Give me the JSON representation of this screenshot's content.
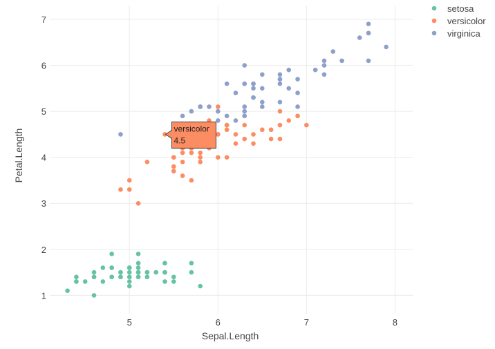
{
  "chart_data": {
    "type": "scatter",
    "title": "",
    "xlabel": "Sepal.Length",
    "ylabel": "Petal.Length",
    "xlim": [
      4.1,
      8.2
    ],
    "ylim": [
      0.6,
      7.3
    ],
    "xticks": [
      5,
      6,
      7,
      8
    ],
    "yticks": [
      1,
      2,
      3,
      4,
      5,
      6,
      7
    ],
    "grid": true,
    "legend": "top-right",
    "series": [
      {
        "name": "setosa",
        "color": "#66c2a5",
        "points": [
          [
            5.1,
            1.4
          ],
          [
            4.9,
            1.4
          ],
          [
            4.7,
            1.3
          ],
          [
            4.6,
            1.5
          ],
          [
            5.0,
            1.4
          ],
          [
            5.4,
            1.7
          ],
          [
            4.6,
            1.4
          ],
          [
            5.0,
            1.5
          ],
          [
            4.4,
            1.4
          ],
          [
            4.9,
            1.5
          ],
          [
            5.4,
            1.5
          ],
          [
            4.8,
            1.6
          ],
          [
            4.8,
            1.4
          ],
          [
            4.3,
            1.1
          ],
          [
            5.8,
            1.2
          ],
          [
            5.7,
            1.5
          ],
          [
            5.4,
            1.3
          ],
          [
            5.1,
            1.4
          ],
          [
            5.7,
            1.7
          ],
          [
            5.1,
            1.5
          ],
          [
            5.4,
            1.7
          ],
          [
            5.1,
            1.5
          ],
          [
            4.6,
            1.0
          ],
          [
            5.1,
            1.7
          ],
          [
            4.8,
            1.9
          ],
          [
            5.0,
            1.6
          ],
          [
            5.0,
            1.6
          ],
          [
            5.2,
            1.5
          ],
          [
            5.2,
            1.4
          ],
          [
            4.7,
            1.6
          ],
          [
            4.8,
            1.6
          ],
          [
            5.4,
            1.5
          ],
          [
            5.2,
            1.5
          ],
          [
            5.5,
            1.4
          ],
          [
            4.9,
            1.5
          ],
          [
            5.0,
            1.2
          ],
          [
            5.5,
            1.3
          ],
          [
            4.9,
            1.4
          ],
          [
            4.4,
            1.3
          ],
          [
            5.1,
            1.5
          ],
          [
            5.0,
            1.3
          ],
          [
            4.5,
            1.3
          ],
          [
            4.4,
            1.3
          ],
          [
            5.0,
            1.6
          ],
          [
            5.1,
            1.9
          ],
          [
            4.8,
            1.4
          ],
          [
            5.1,
            1.6
          ],
          [
            4.6,
            1.4
          ],
          [
            5.3,
            1.5
          ],
          [
            5.0,
            1.4
          ]
        ]
      },
      {
        "name": "versicolor",
        "color": "#fc8d62",
        "points": [
          [
            7.0,
            4.7
          ],
          [
            6.4,
            4.5
          ],
          [
            6.9,
            4.9
          ],
          [
            5.5,
            4.0
          ],
          [
            6.5,
            4.6
          ],
          [
            5.7,
            4.5
          ],
          [
            6.3,
            4.7
          ],
          [
            4.9,
            3.3
          ],
          [
            6.6,
            4.6
          ],
          [
            5.2,
            3.9
          ],
          [
            5.0,
            3.5
          ],
          [
            5.9,
            4.2
          ],
          [
            6.0,
            4.0
          ],
          [
            6.1,
            4.7
          ],
          [
            5.6,
            3.6
          ],
          [
            6.7,
            4.4
          ],
          [
            5.6,
            4.5
          ],
          [
            5.8,
            4.1
          ],
          [
            6.2,
            4.5
          ],
          [
            5.6,
            3.9
          ],
          [
            5.9,
            4.8
          ],
          [
            6.1,
            4.0
          ],
          [
            6.3,
            4.9
          ],
          [
            6.1,
            4.7
          ],
          [
            6.4,
            4.3
          ],
          [
            6.6,
            4.4
          ],
          [
            6.8,
            4.8
          ],
          [
            6.7,
            5.0
          ],
          [
            6.0,
            4.5
          ],
          [
            5.7,
            3.5
          ],
          [
            5.5,
            3.8
          ],
          [
            5.5,
            3.7
          ],
          [
            5.8,
            3.9
          ],
          [
            6.0,
            5.1
          ],
          [
            5.4,
            4.5
          ],
          [
            6.0,
            4.5
          ],
          [
            6.7,
            4.7
          ],
          [
            6.3,
            4.4
          ],
          [
            5.6,
            4.1
          ],
          [
            5.5,
            4.0
          ],
          [
            5.5,
            4.4
          ],
          [
            6.1,
            4.6
          ],
          [
            5.8,
            4.0
          ],
          [
            5.0,
            3.3
          ],
          [
            5.6,
            4.2
          ],
          [
            5.7,
            4.2
          ],
          [
            5.7,
            4.2
          ],
          [
            6.2,
            4.3
          ],
          [
            5.1,
            3.0
          ],
          [
            5.7,
            4.1
          ]
        ]
      },
      {
        "name": "virginica",
        "color": "#8da0cb",
        "points": [
          [
            6.3,
            6.0
          ],
          [
            5.8,
            5.1
          ],
          [
            7.1,
            5.9
          ],
          [
            6.3,
            5.6
          ],
          [
            6.5,
            5.8
          ],
          [
            7.6,
            6.6
          ],
          [
            4.9,
            4.5
          ],
          [
            7.3,
            6.3
          ],
          [
            6.7,
            5.8
          ],
          [
            7.2,
            6.1
          ],
          [
            6.5,
            5.1
          ],
          [
            6.4,
            5.3
          ],
          [
            6.8,
            5.5
          ],
          [
            5.7,
            5.0
          ],
          [
            5.8,
            5.1
          ],
          [
            6.4,
            5.3
          ],
          [
            6.5,
            5.5
          ],
          [
            7.7,
            6.7
          ],
          [
            7.7,
            6.9
          ],
          [
            6.0,
            5.0
          ],
          [
            6.9,
            5.7
          ],
          [
            5.6,
            4.9
          ],
          [
            7.7,
            6.7
          ],
          [
            6.3,
            4.9
          ],
          [
            6.7,
            5.7
          ],
          [
            7.2,
            6.0
          ],
          [
            6.2,
            4.8
          ],
          [
            6.1,
            4.9
          ],
          [
            6.4,
            5.6
          ],
          [
            7.2,
            5.8
          ],
          [
            7.4,
            6.1
          ],
          [
            7.9,
            6.4
          ],
          [
            6.4,
            5.6
          ],
          [
            6.3,
            5.1
          ],
          [
            6.1,
            5.6
          ],
          [
            7.7,
            6.1
          ],
          [
            6.3,
            5.6
          ],
          [
            6.4,
            5.5
          ],
          [
            6.0,
            4.8
          ],
          [
            6.9,
            5.4
          ],
          [
            6.7,
            5.6
          ],
          [
            6.9,
            5.1
          ],
          [
            5.8,
            5.1
          ],
          [
            6.8,
            5.9
          ],
          [
            6.7,
            5.7
          ],
          [
            6.7,
            5.2
          ],
          [
            6.3,
            5.0
          ],
          [
            6.5,
            5.2
          ],
          [
            6.2,
            5.4
          ],
          [
            5.9,
            5.1
          ]
        ]
      }
    ],
    "hover": {
      "series": "versicolor",
      "value": "4.5",
      "x": 5.4,
      "y": 4.5
    }
  }
}
